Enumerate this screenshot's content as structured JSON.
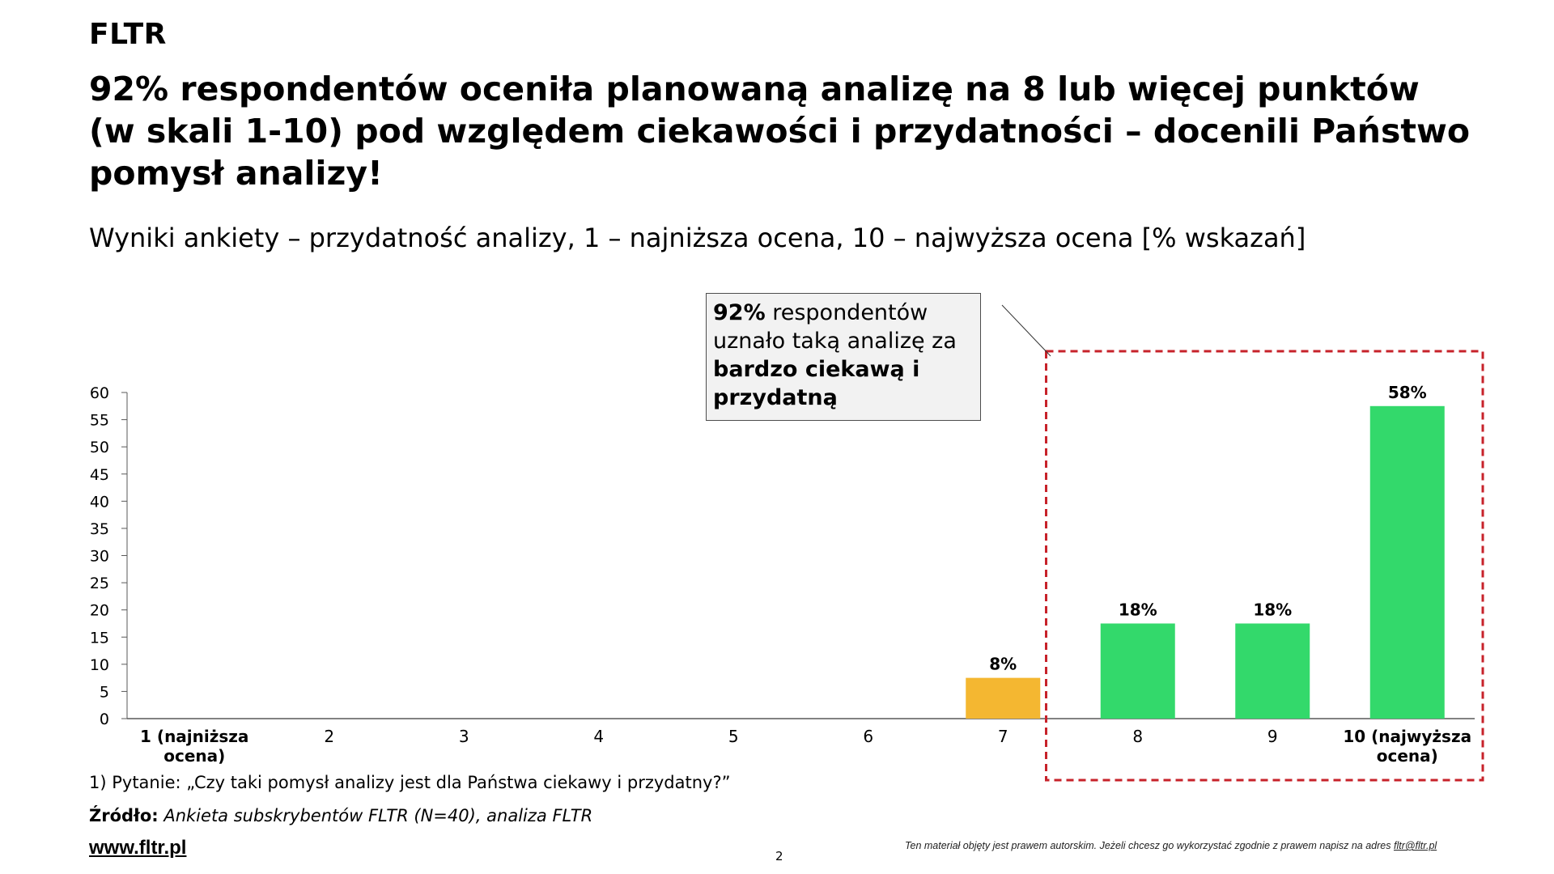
{
  "brand": "FLTR",
  "headline": {
    "lines": [
      "92% respondentów oceniła planowaną analizę na 8 lub więcej punktów",
      "(w skali 1-10) pod względem ciekawości i przydatności – docenili Państwo",
      "pomysł analizy!"
    ]
  },
  "callout": {
    "part1_bold": "92%",
    "part1_rest": " respondentów uznało taką analizę za ",
    "part2_bold": "bardzo ciekawą i przydatną"
  },
  "colors": {
    "orange": "#F4B731",
    "green": "#33D96B",
    "highlight_border": "#C7222A",
    "axis": "#595959"
  },
  "chart_data": {
    "type": "bar",
    "title": "Wyniki ankiety – przydatność analizy, 1 – najniższa ocena, 10 – najwyższa ocena [% wskazań]",
    "categories": [
      "1 (najniższa ocena)",
      "2",
      "3",
      "4",
      "5",
      "6",
      "7",
      "8",
      "9",
      "10 (najwyższa ocena)"
    ],
    "category_lines": [
      [
        "1 (najniższa",
        "ocena)"
      ],
      [
        "2"
      ],
      [
        "3"
      ],
      [
        "4"
      ],
      [
        "5"
      ],
      [
        "6"
      ],
      [
        "7"
      ],
      [
        "8"
      ],
      [
        "9"
      ],
      [
        "10 (najwyższa",
        "ocena)"
      ]
    ],
    "values": [
      0,
      0,
      0,
      0,
      0,
      0,
      7.5,
      17.5,
      17.5,
      57.5
    ],
    "data_labels": [
      "",
      "",
      "",
      "",
      "",
      "",
      "8%",
      "18%",
      "18%",
      "58%"
    ],
    "bar_colors": [
      "#F4B731",
      "#F4B731",
      "#F4B731",
      "#F4B731",
      "#F4B731",
      "#F4B731",
      "#F4B731",
      "#33D96B",
      "#33D96B",
      "#33D96B"
    ],
    "ylim": [
      0,
      60
    ],
    "yticks": [
      0,
      5,
      10,
      15,
      20,
      25,
      30,
      35,
      40,
      45,
      50,
      55,
      60
    ],
    "highlight_categories": [
      "8",
      "9",
      "10 (najwyższa ocena)"
    ],
    "xlabel": "",
    "ylabel": "",
    "grid": false,
    "legend": "none"
  },
  "footnote": "1) Pytanie: „Czy taki pomysł analizy jest dla Państwa ciekawy i przydatny?”",
  "source": {
    "label": "Źródło:",
    "text": " Ankieta subskrybentów FLTR (N=40), analiza FLTR"
  },
  "website": "www.fltr.pl",
  "page_number": "2",
  "copyright": {
    "text": "Ten materiał objęty jest prawem  autorskim. Jeżeli chcesz go wykorzystać zgodnie z prawem  napisz na adres ",
    "email": "fltr@fltr.pl"
  }
}
